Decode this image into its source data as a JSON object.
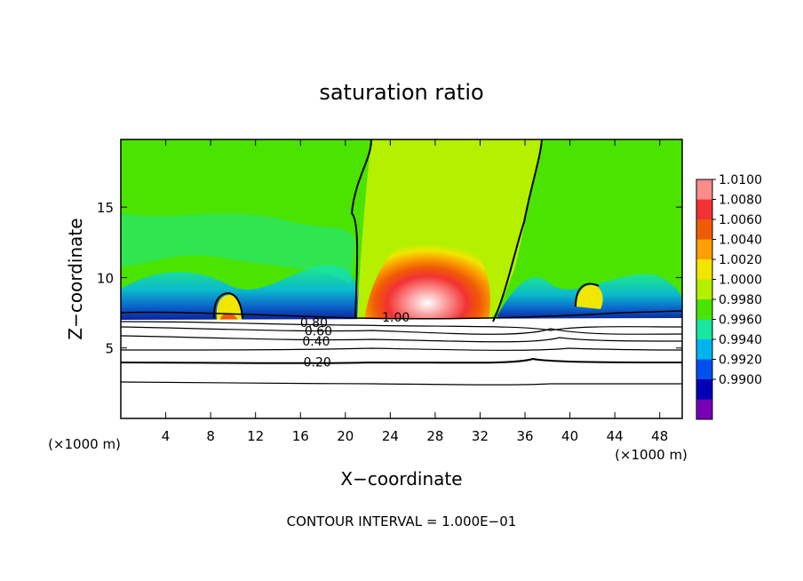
{
  "chart_data": {
    "type": "heatmap",
    "title": "saturation ratio",
    "xlabel": "X−coordinate",
    "ylabel": "Z−coordinate",
    "x_unit_left": "(×1000 m)",
    "x_unit_right": "(×1000 m)",
    "footer": "CONTOUR INTERVAL = 1.000E−01",
    "x_ticks": [
      4,
      8,
      12,
      16,
      20,
      24,
      28,
      32,
      36,
      40,
      44,
      48
    ],
    "y_ticks": [
      5,
      10,
      15
    ],
    "xlim": [
      0,
      50
    ],
    "ylim": [
      0,
      19.8
    ],
    "colorbar": {
      "labels": [
        "1.0100",
        "1.0080",
        "1.0060",
        "1.0040",
        "1.0020",
        "1.0000",
        "0.9980",
        "0.9960",
        "0.9940",
        "0.9920",
        "0.9900"
      ],
      "colors": [
        "#fb8c8c",
        "#f23232",
        "#f05c05",
        "#fba000",
        "#f0e600",
        "#b4f000",
        "#4be300",
        "#17e8a0",
        "#00b4f0",
        "#0050f0",
        "#0000b4",
        "#7800b4"
      ]
    },
    "contour_labels": [
      {
        "text": "1.00",
        "x": 24.5,
        "y": 7.2
      },
      {
        "text": "0.80",
        "x": 17.2,
        "y": 6.8
      },
      {
        "text": "0.60",
        "x": 17.6,
        "y": 6.2
      },
      {
        "text": "0.40",
        "x": 17.4,
        "y": 5.5
      },
      {
        "text": "0.20",
        "x": 17.5,
        "y": 4.0
      }
    ]
  }
}
